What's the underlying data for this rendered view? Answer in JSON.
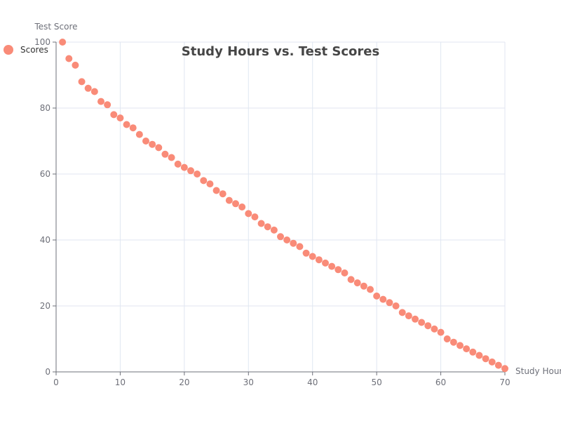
{
  "chart_data": {
    "type": "scatter",
    "title": "Study Hours vs. Test Scores",
    "xlabel": "Study Hours",
    "ylabel": "Test Score",
    "xlim": [
      0,
      70
    ],
    "ylim": [
      0,
      100
    ],
    "x_ticks": [
      0,
      10,
      20,
      30,
      40,
      50,
      60,
      70
    ],
    "y_ticks": [
      0,
      20,
      40,
      60,
      80,
      100
    ],
    "grid": true,
    "legend_position": "top-left",
    "series": [
      {
        "name": "Scores",
        "color": "#f98b78",
        "points": [
          [
            1,
            100
          ],
          [
            2,
            95
          ],
          [
            3,
            93
          ],
          [
            4,
            88
          ],
          [
            5,
            86
          ],
          [
            6,
            85
          ],
          [
            7,
            82
          ],
          [
            8,
            81
          ],
          [
            9,
            78
          ],
          [
            10,
            77
          ],
          [
            11,
            75
          ],
          [
            12,
            74
          ],
          [
            13,
            72
          ],
          [
            14,
            70
          ],
          [
            15,
            69
          ],
          [
            16,
            68
          ],
          [
            17,
            66
          ],
          [
            18,
            65
          ],
          [
            19,
            63
          ],
          [
            20,
            62
          ],
          [
            21,
            61
          ],
          [
            22,
            60
          ],
          [
            23,
            58
          ],
          [
            24,
            57
          ],
          [
            25,
            55
          ],
          [
            26,
            54
          ],
          [
            27,
            52
          ],
          [
            28,
            51
          ],
          [
            29,
            50
          ],
          [
            30,
            48
          ],
          [
            31,
            47
          ],
          [
            32,
            45
          ],
          [
            33,
            44
          ],
          [
            34,
            43
          ],
          [
            35,
            41
          ],
          [
            36,
            40
          ],
          [
            37,
            39
          ],
          [
            38,
            38
          ],
          [
            39,
            36
          ],
          [
            40,
            35
          ],
          [
            41,
            34
          ],
          [
            42,
            33
          ],
          [
            43,
            32
          ],
          [
            44,
            31
          ],
          [
            45,
            30
          ],
          [
            46,
            28
          ],
          [
            47,
            27
          ],
          [
            48,
            26
          ],
          [
            49,
            25
          ],
          [
            50,
            23
          ],
          [
            51,
            22
          ],
          [
            52,
            21
          ],
          [
            53,
            20
          ],
          [
            54,
            18
          ],
          [
            55,
            17
          ],
          [
            56,
            16
          ],
          [
            57,
            15
          ],
          [
            58,
            14
          ],
          [
            59,
            13
          ],
          [
            60,
            12
          ],
          [
            61,
            10
          ],
          [
            62,
            9
          ],
          [
            63,
            8
          ],
          [
            64,
            7
          ],
          [
            65,
            6
          ],
          [
            66,
            5
          ],
          [
            67,
            4
          ],
          [
            68,
            3
          ],
          [
            69,
            2
          ],
          [
            70,
            1
          ]
        ]
      }
    ]
  },
  "colors": {
    "grid": "#e0e6f1",
    "axis": "#6e7079"
  }
}
